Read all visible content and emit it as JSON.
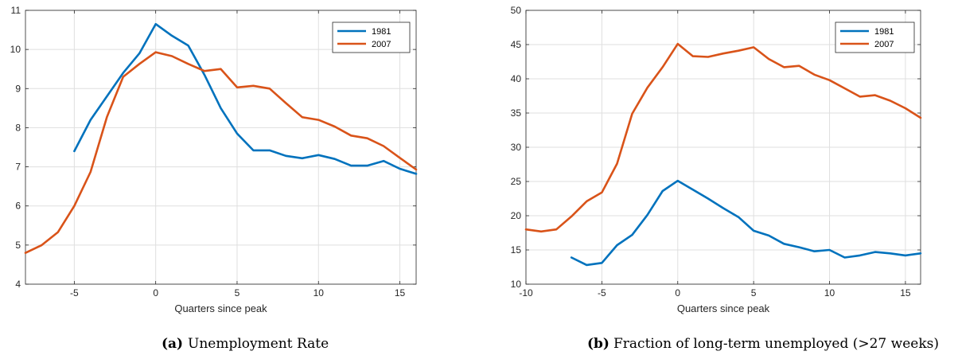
{
  "chart_data": [
    {
      "type": "line",
      "caption_label": "(a)",
      "caption_text": "Unemployment Rate",
      "xlabel": "Quarters since peak",
      "ylabel": "",
      "xlim": [
        -8,
        16
      ],
      "ylim": [
        4,
        11
      ],
      "xticks": [
        -5,
        0,
        5,
        10,
        15
      ],
      "yticks": [
        4,
        5,
        6,
        7,
        8,
        9,
        10,
        11
      ],
      "grid": true,
      "legend_position": "top-right",
      "series": [
        {
          "name": "1981",
          "color": "#0072BD",
          "x": [
            -5,
            -4,
            -3,
            -2,
            -1,
            0,
            1,
            2,
            3,
            4,
            5,
            6,
            7,
            8,
            9,
            10,
            11,
            12,
            13,
            14,
            15,
            16
          ],
          "y": [
            7.4,
            8.2,
            8.8,
            9.4,
            9.9,
            10.65,
            10.35,
            10.1,
            9.35,
            8.5,
            7.85,
            7.42,
            7.42,
            7.28,
            7.22,
            7.3,
            7.2,
            7.03,
            7.03,
            7.15,
            6.95,
            6.82
          ]
        },
        {
          "name": "2007",
          "color": "#D95319",
          "x": [
            -8,
            -7,
            -6,
            -5,
            -4,
            -3,
            -2,
            -1,
            0,
            1,
            2,
            3,
            4,
            5,
            6,
            7,
            8,
            9,
            10,
            11,
            12,
            13,
            14,
            15,
            16
          ],
          "y": [
            4.8,
            5.0,
            5.33,
            6.0,
            6.87,
            8.27,
            9.3,
            9.63,
            9.93,
            9.83,
            9.63,
            9.45,
            9.5,
            9.03,
            9.07,
            9.0,
            8.63,
            8.27,
            8.2,
            8.03,
            7.8,
            7.73,
            7.53,
            7.23,
            6.93
          ]
        }
      ]
    },
    {
      "type": "line",
      "caption_label": "(b)",
      "caption_text": "Fraction of long-term unemployed (>27 weeks)",
      "xlabel": "Quarters since peak",
      "ylabel": "",
      "xlim": [
        -10,
        16
      ],
      "ylim": [
        10,
        50
      ],
      "xticks": [
        -10,
        -5,
        0,
        5,
        10,
        15
      ],
      "yticks": [
        10,
        15,
        20,
        25,
        30,
        35,
        40,
        45,
        50
      ],
      "grid": true,
      "legend_position": "top-right",
      "series": [
        {
          "name": "1981",
          "color": "#0072BD",
          "x": [
            -7,
            -6,
            -5,
            -4,
            -3,
            -2,
            -1,
            0,
            1,
            2,
            3,
            4,
            5,
            6,
            7,
            8,
            9,
            10,
            11,
            12,
            13,
            14,
            15,
            16
          ],
          "y": [
            13.9,
            12.8,
            13.1,
            15.7,
            17.2,
            20.1,
            23.6,
            25.1,
            23.8,
            22.5,
            21.1,
            19.8,
            17.8,
            17.1,
            15.9,
            15.4,
            14.8,
            15.0,
            13.9,
            14.2,
            14.7,
            14.5,
            14.2,
            14.5
          ]
        },
        {
          "name": "2007",
          "color": "#D95319",
          "x": [
            -10,
            -9,
            -8,
            -7,
            -6,
            -5,
            -4,
            -3,
            -2,
            -1,
            0,
            1,
            2,
            3,
            4,
            5,
            6,
            7,
            8,
            9,
            10,
            11,
            12,
            13,
            14,
            15,
            16
          ],
          "y": [
            18.0,
            17.7,
            18.0,
            19.9,
            22.1,
            23.4,
            27.6,
            34.9,
            38.7,
            41.7,
            45.1,
            43.3,
            43.2,
            43.7,
            44.1,
            44.6,
            42.9,
            41.7,
            41.9,
            40.6,
            39.8,
            38.6,
            37.4,
            37.6,
            36.8,
            35.7,
            34.3
          ]
        }
      ]
    }
  ]
}
